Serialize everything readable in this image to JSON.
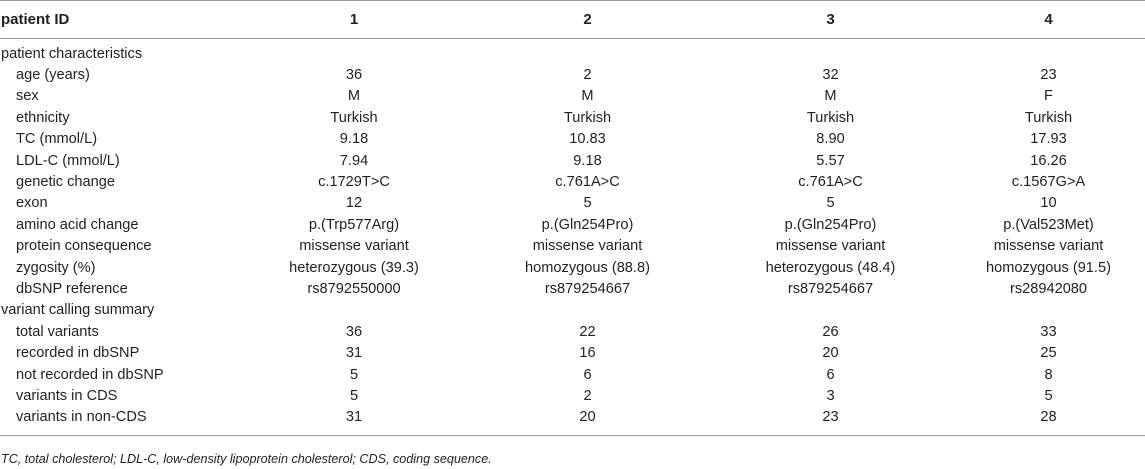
{
  "table": {
    "header": [
      "patient ID",
      "1",
      "2",
      "3",
      "4"
    ],
    "sections": [
      {
        "title": "patient characteristics",
        "rows": [
          {
            "label": "age (years)",
            "values": [
              "36",
              "2",
              "32",
              "23"
            ]
          },
          {
            "label": "sex",
            "values": [
              "M",
              "M",
              "M",
              "F"
            ]
          },
          {
            "label": "ethnicity",
            "values": [
              "Turkish",
              "Turkish",
              "Turkish",
              "Turkish"
            ]
          },
          {
            "label": "TC (mmol/L)",
            "values": [
              "9.18",
              "10.83",
              "8.90",
              "17.93"
            ]
          },
          {
            "label": "LDL-C (mmol/L)",
            "values": [
              "7.94",
              "9.18",
              "5.57",
              "16.26"
            ]
          },
          {
            "label": "genetic change",
            "values": [
              "c.1729T>C",
              "c.761A>C",
              "c.761A>C",
              "c.1567G>A"
            ]
          },
          {
            "label": "exon",
            "values": [
              "12",
              "5",
              "5",
              "10"
            ]
          },
          {
            "label": "amino acid change",
            "values": [
              "p.(Trp577Arg)",
              "p.(Gln254Pro)",
              "p.(Gln254Pro)",
              "p.(Val523Met)"
            ]
          },
          {
            "label": "protein consequence",
            "values": [
              "missense variant",
              "missense variant",
              "missense variant",
              "missense variant"
            ]
          },
          {
            "label": "zygosity (%)",
            "values": [
              "heterozygous (39.3)",
              "homozygous (88.8)",
              "heterozygous (48.4)",
              "homozygous (91.5)"
            ]
          },
          {
            "label": "dbSNP reference",
            "values": [
              "rs8792550000",
              "rs879254667",
              "rs879254667",
              "rs28942080"
            ]
          }
        ]
      },
      {
        "title": "variant calling summary",
        "rows": [
          {
            "label": "total variants",
            "values": [
              "36",
              "22",
              "26",
              "33"
            ]
          },
          {
            "label": "recorded in dbSNP",
            "values": [
              "31",
              "16",
              "20",
              "25"
            ]
          },
          {
            "label": "not recorded in dbSNP",
            "values": [
              "5",
              "6",
              "6",
              "8"
            ]
          },
          {
            "label": "variants in CDS",
            "values": [
              "5",
              "2",
              "3",
              "5"
            ]
          },
          {
            "label": "variants in non-CDS",
            "values": [
              "31",
              "20",
              "23",
              "28"
            ]
          }
        ]
      }
    ]
  },
  "footnote": "TC, total cholesterol; LDL-C, low-density lipoprotein cholesterol; CDS, coding sequence."
}
